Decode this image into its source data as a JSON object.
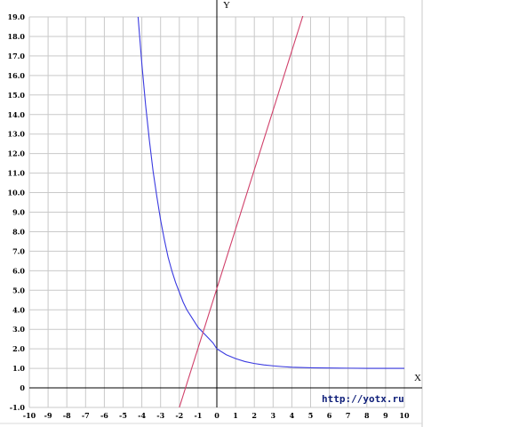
{
  "chart_data": {
    "type": "line",
    "title": "",
    "xlabel": "X",
    "ylabel": "Y",
    "xlim": [
      -10,
      10
    ],
    "ylim": [
      -1,
      19
    ],
    "grid": true,
    "x_ticks": [
      "-10",
      "-9",
      "-8",
      "-7",
      "-6",
      "-5",
      "-4",
      "-3",
      "-2",
      "-1",
      "0",
      "1",
      "2",
      "3",
      "4",
      "5",
      "6",
      "7",
      "8",
      "9",
      "10"
    ],
    "y_ticks": [
      "-1.0",
      "0",
      "1.0",
      "2.0",
      "3.0",
      "4.0",
      "5.0",
      "6.0",
      "7.0",
      "8.0",
      "9.0",
      "10.0",
      "11.0",
      "12.0",
      "13.0",
      "14.0",
      "15.0",
      "16.0",
      "17.0",
      "18.0",
      "19.0"
    ],
    "series": [
      {
        "color": "#3a3ae0",
        "x": [
          -4.2,
          -4.0,
          -3.8,
          -3.6,
          -3.4,
          -3.2,
          -3.0,
          -2.8,
          -2.6,
          -2.4,
          -2.2,
          -2.0,
          -1.8,
          -1.6,
          -1.4,
          -1.2,
          -1.0,
          -0.8,
          -0.6,
          -0.4,
          -0.2,
          0.0,
          0.5,
          1.0,
          1.5,
          2.0,
          2.5,
          3.0,
          3.5,
          4.0,
          5.0,
          6.0,
          7.0,
          8.0,
          9.0,
          10.0
        ],
        "y": [
          19.0,
          16.6,
          14.5,
          12.7,
          11.1,
          9.8,
          8.6,
          7.6,
          6.7,
          6.0,
          5.4,
          4.9,
          4.4,
          4.0,
          3.7,
          3.4,
          3.1,
          2.9,
          2.7,
          2.5,
          2.3,
          2.0,
          1.7,
          1.5,
          1.35,
          1.25,
          1.18,
          1.13,
          1.09,
          1.06,
          1.03,
          1.02,
          1.01,
          1.0,
          1.0,
          1.0
        ]
      },
      {
        "color": "#d0406a",
        "x": [
          -2.0,
          4.8
        ],
        "y": [
          -1.0,
          19.7
        ]
      }
    ]
  },
  "watermark": "http://yotx.ru"
}
